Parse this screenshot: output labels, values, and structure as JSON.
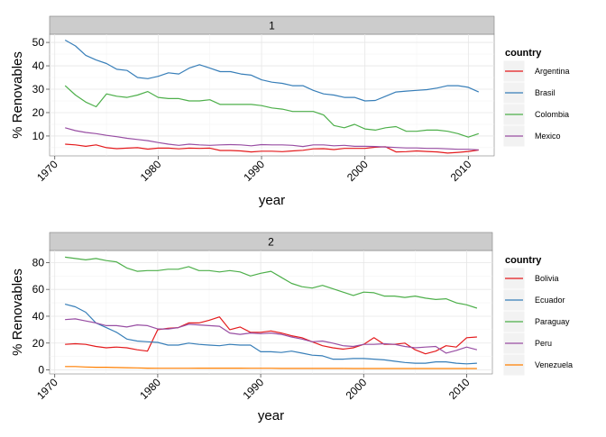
{
  "chart_data": [
    {
      "type": "line",
      "facet_label": "1",
      "xlabel": "year",
      "ylabel": "% Renovables",
      "xlim": [
        1969.5,
        2012.5
      ],
      "ylim": [
        1.5,
        53.5
      ],
      "x_ticks": [
        1970,
        1980,
        1990,
        2000,
        2010
      ],
      "y_ticks": [
        10,
        20,
        30,
        40,
        50
      ],
      "grid": true,
      "legend_title": "country",
      "legend_position": "right",
      "x": [
        1971,
        1972,
        1973,
        1974,
        1975,
        1976,
        1977,
        1978,
        1979,
        1980,
        1981,
        1982,
        1983,
        1984,
        1985,
        1986,
        1987,
        1988,
        1989,
        1990,
        1991,
        1992,
        1993,
        1994,
        1995,
        1996,
        1997,
        1998,
        1999,
        2000,
        2001,
        2002,
        2003,
        2004,
        2005,
        2006,
        2007,
        2008,
        2009,
        2010,
        2011
      ],
      "series": [
        {
          "name": "Argentina",
          "color": "#e41a1c",
          "values": [
            6.5,
            6.2,
            5.6,
            6.2,
            5.0,
            4.6,
            4.8,
            5.0,
            4.4,
            4.8,
            4.8,
            4.5,
            4.8,
            4.7,
            4.8,
            3.8,
            3.8,
            3.6,
            3.2,
            3.5,
            3.5,
            3.3,
            3.6,
            3.9,
            4.5,
            4.6,
            4.2,
            4.7,
            4.7,
            4.7,
            5.2,
            5.4,
            3.2,
            3.3,
            3.6,
            3.4,
            3.2,
            2.7,
            3.0,
            3.4,
            4.0
          ]
        },
        {
          "name": "Brasil",
          "color": "#377eb8",
          "values": [
            51,
            48.5,
            44.5,
            42.5,
            41,
            38.5,
            38,
            35,
            34.5,
            35.5,
            37,
            36.5,
            39,
            40.5,
            39,
            37.5,
            37.5,
            36.5,
            36,
            34,
            33,
            32.5,
            31.5,
            31.5,
            29.5,
            28,
            27.5,
            26.5,
            26.5,
            25,
            25.2,
            27,
            28.8,
            29.2,
            29.5,
            29.8,
            30.5,
            31.5,
            31.5,
            30.8,
            28.8
          ]
        },
        {
          "name": "Colombia",
          "color": "#4daf4a",
          "values": [
            31.5,
            27.5,
            24.5,
            22.5,
            28,
            27,
            26.5,
            27.5,
            29,
            26.5,
            26,
            26,
            25,
            25,
            25.5,
            23.5,
            23.5,
            23.5,
            23.5,
            23,
            22,
            21.5,
            20.5,
            20.5,
            20.5,
            19,
            14.5,
            13.5,
            15,
            13,
            12.5,
            13.5,
            14,
            12,
            12,
            12.5,
            12.5,
            12,
            11,
            9.5,
            11
          ]
        },
        {
          "name": "Mexico",
          "color": "#984ea3",
          "values": [
            13.5,
            12.3,
            11.5,
            11.0,
            10.3,
            9.7,
            9.0,
            8.5,
            8.0,
            7.2,
            6.5,
            6.0,
            6.5,
            6.2,
            6.0,
            6.2,
            6.3,
            6.2,
            5.8,
            6.3,
            6.2,
            6.2,
            6.0,
            5.5,
            6.2,
            6.2,
            5.8,
            6.0,
            5.6,
            5.6,
            5.5,
            5.3,
            5.1,
            4.9,
            4.9,
            4.7,
            4.7,
            4.5,
            4.3,
            4.3,
            4.1
          ]
        }
      ]
    },
    {
      "type": "line",
      "facet_label": "2",
      "xlabel": "year",
      "ylabel": "% Renovables",
      "xlim": [
        1969.5,
        2012.5
      ],
      "ylim": [
        -3,
        89
      ],
      "x_ticks": [
        1970,
        1980,
        1990,
        2000,
        2010
      ],
      "y_ticks": [
        0,
        20,
        40,
        60,
        80
      ],
      "grid": true,
      "legend_title": "country",
      "legend_position": "right",
      "x": [
        1971,
        1972,
        1973,
        1974,
        1975,
        1976,
        1977,
        1978,
        1979,
        1980,
        1981,
        1982,
        1983,
        1984,
        1985,
        1986,
        1987,
        1988,
        1989,
        1990,
        1991,
        1992,
        1993,
        1994,
        1995,
        1996,
        1997,
        1998,
        1999,
        2000,
        2001,
        2002,
        2003,
        2004,
        2005,
        2006,
        2007,
        2008,
        2009,
        2010,
        2011
      ],
      "series": [
        {
          "name": "Bolivia",
          "color": "#e41a1c",
          "values": [
            19,
            19.5,
            19,
            17.5,
            16.5,
            17,
            16.5,
            15,
            14,
            30,
            31,
            31.5,
            35,
            35,
            37,
            39.5,
            30,
            32,
            28,
            28,
            29,
            27.5,
            25.5,
            24,
            21,
            18,
            16.5,
            15.5,
            16.5,
            19,
            24,
            19,
            19,
            20,
            15,
            12,
            14,
            18,
            17,
            24,
            24.5
          ]
        },
        {
          "name": "Ecuador",
          "color": "#377eb8",
          "values": [
            49,
            47,
            43,
            35,
            31.5,
            28,
            23,
            21.5,
            21,
            20.5,
            18.5,
            18.5,
            20,
            19,
            18.5,
            18,
            19,
            18.5,
            18.5,
            13.5,
            13.5,
            13,
            14,
            12.5,
            11,
            10.5,
            8,
            8,
            8.5,
            8.5,
            8,
            7.5,
            6.5,
            5.5,
            5,
            5,
            6,
            6,
            5,
            4.5,
            5
          ]
        },
        {
          "name": "Paraguay",
          "color": "#4daf4a",
          "values": [
            84,
            83,
            82,
            83,
            81.5,
            80.5,
            76,
            73.5,
            74,
            74,
            75,
            75,
            77,
            74,
            74,
            73,
            74,
            73,
            70,
            72,
            73.5,
            69,
            64.5,
            62,
            61,
            63,
            60.5,
            58,
            55.5,
            58,
            57.5,
            55,
            55,
            54,
            55,
            53.5,
            52.5,
            53,
            50,
            48.5,
            46
          ]
        },
        {
          "name": "Peru",
          "color": "#984ea3",
          "values": [
            37.5,
            38,
            36.5,
            35,
            33,
            33,
            32,
            33.5,
            33,
            30.5,
            30.5,
            31.5,
            34,
            33.5,
            33,
            32.5,
            27.5,
            26.5,
            27.5,
            27,
            27.5,
            26.5,
            24.5,
            23,
            21,
            21.5,
            20,
            18,
            17.5,
            19,
            19,
            19.5,
            19,
            17.5,
            16.5,
            17,
            17.5,
            12.5,
            14.5,
            17,
            15
          ]
        },
        {
          "name": "Venezuela",
          "color": "#ff7f00",
          "values": [
            2.5,
            2.5,
            2.2,
            2.0,
            2.0,
            1.8,
            1.6,
            1.5,
            1.3,
            1.2,
            1.2,
            1.2,
            1.2,
            1.3,
            1.3,
            1.3,
            1.3,
            1.3,
            1.2,
            1.2,
            1.2,
            1.1,
            1.1,
            1.1,
            1.1,
            1.1,
            1.1,
            1.1,
            1.0,
            1.0,
            1.0,
            1.0,
            1.0,
            1.0,
            1.0,
            1.0,
            1.0,
            1.0,
            1.0,
            1.0,
            1.0
          ]
        }
      ]
    }
  ]
}
